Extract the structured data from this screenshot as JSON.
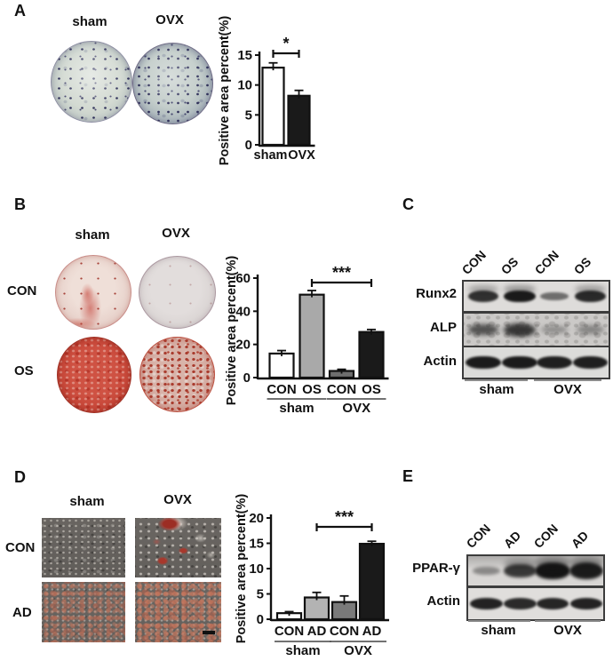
{
  "panels": {
    "A": {
      "letter": "A",
      "columns": [
        "sham",
        "OVX"
      ]
    },
    "B": {
      "letter": "B",
      "columns": [
        "sham",
        "OVX"
      ],
      "rows": [
        "CON",
        "OS"
      ]
    },
    "C": {
      "letter": "C"
    },
    "D": {
      "letter": "D",
      "columns": [
        "sham",
        "OVX"
      ],
      "rows": [
        "CON",
        "AD"
      ]
    },
    "E": {
      "letter": "E"
    }
  },
  "chart_data": [
    {
      "type": "bar",
      "panel": "A",
      "title": "",
      "ylabel": "Positive area percent(%)",
      "ylim": [
        0,
        15
      ],
      "yticks": [
        0,
        5,
        10,
        15
      ],
      "categories": [
        "sham",
        "OVX"
      ],
      "values": [
        12.9,
        8.2
      ],
      "errors": [
        0.8,
        0.9
      ],
      "bar_colors": [
        "#ffffff",
        "#1a1a1a"
      ],
      "significance": {
        "from": 0,
        "to": 1,
        "label": "*"
      }
    },
    {
      "type": "bar",
      "panel": "B",
      "title": "",
      "ylabel": "Positive area percent(%)",
      "ylim": [
        0,
        60
      ],
      "yticks": [
        0,
        20,
        40,
        60
      ],
      "categories": [
        "CON",
        "OS",
        "CON",
        "OS"
      ],
      "group_labels": [
        {
          "label": "sham",
          "from": 0,
          "to": 1
        },
        {
          "label": "OVX",
          "from": 2,
          "to": 3
        }
      ],
      "values": [
        14.5,
        50,
        4,
        27.5
      ],
      "errors": [
        1.8,
        2.5,
        1,
        1.5
      ],
      "bar_colors": [
        "#ffffff",
        "#a9a9a9",
        "#6e6e6e",
        "#1a1a1a"
      ],
      "significance": {
        "from": 1,
        "to": 3,
        "label": "***"
      }
    },
    {
      "type": "bar",
      "panel": "D",
      "title": "",
      "ylabel": "Positive area percent(%)",
      "ylim": [
        0,
        20
      ],
      "yticks": [
        0,
        5,
        10,
        15,
        20
      ],
      "categories": [
        "CON",
        "AD",
        "CON",
        "AD"
      ],
      "group_labels": [
        {
          "label": "sham",
          "from": 0,
          "to": 1
        },
        {
          "label": "OVX",
          "from": 2,
          "to": 3
        }
      ],
      "values": [
        1.2,
        4.3,
        3.4,
        14.9
      ],
      "errors": [
        0.3,
        1.0,
        1.2,
        0.5
      ],
      "bar_colors": [
        "#ffffff",
        "#b3b3b3",
        "#7a7a7a",
        "#1a1a1a"
      ],
      "significance": {
        "from": 1,
        "to": 3,
        "label": "***"
      }
    }
  ],
  "blots": [
    {
      "panel": "C",
      "lane_labels": [
        "CON",
        "OS",
        "CON",
        "OS"
      ],
      "group_labels": [
        "sham",
        "OVX"
      ],
      "rows": [
        {
          "label": "Runx2",
          "intensities": [
            0.8,
            0.95,
            0.4,
            0.85
          ]
        },
        {
          "label": "ALP",
          "intensities": [
            0.55,
            0.75,
            0.12,
            0.18
          ]
        },
        {
          "label": "Actin",
          "intensities": [
            0.95,
            0.95,
            0.92,
            0.92
          ]
        }
      ]
    },
    {
      "panel": "E",
      "lane_labels": [
        "CON",
        "AD",
        "CON",
        "AD"
      ],
      "group_labels": [
        "sham",
        "OVX"
      ],
      "rows": [
        {
          "label": "PPAR-γ",
          "intensities": [
            0.2,
            0.75,
            1.0,
            0.95
          ]
        },
        {
          "label": "Actin",
          "intensities": [
            0.9,
            0.85,
            0.88,
            0.9
          ]
        }
      ]
    }
  ]
}
